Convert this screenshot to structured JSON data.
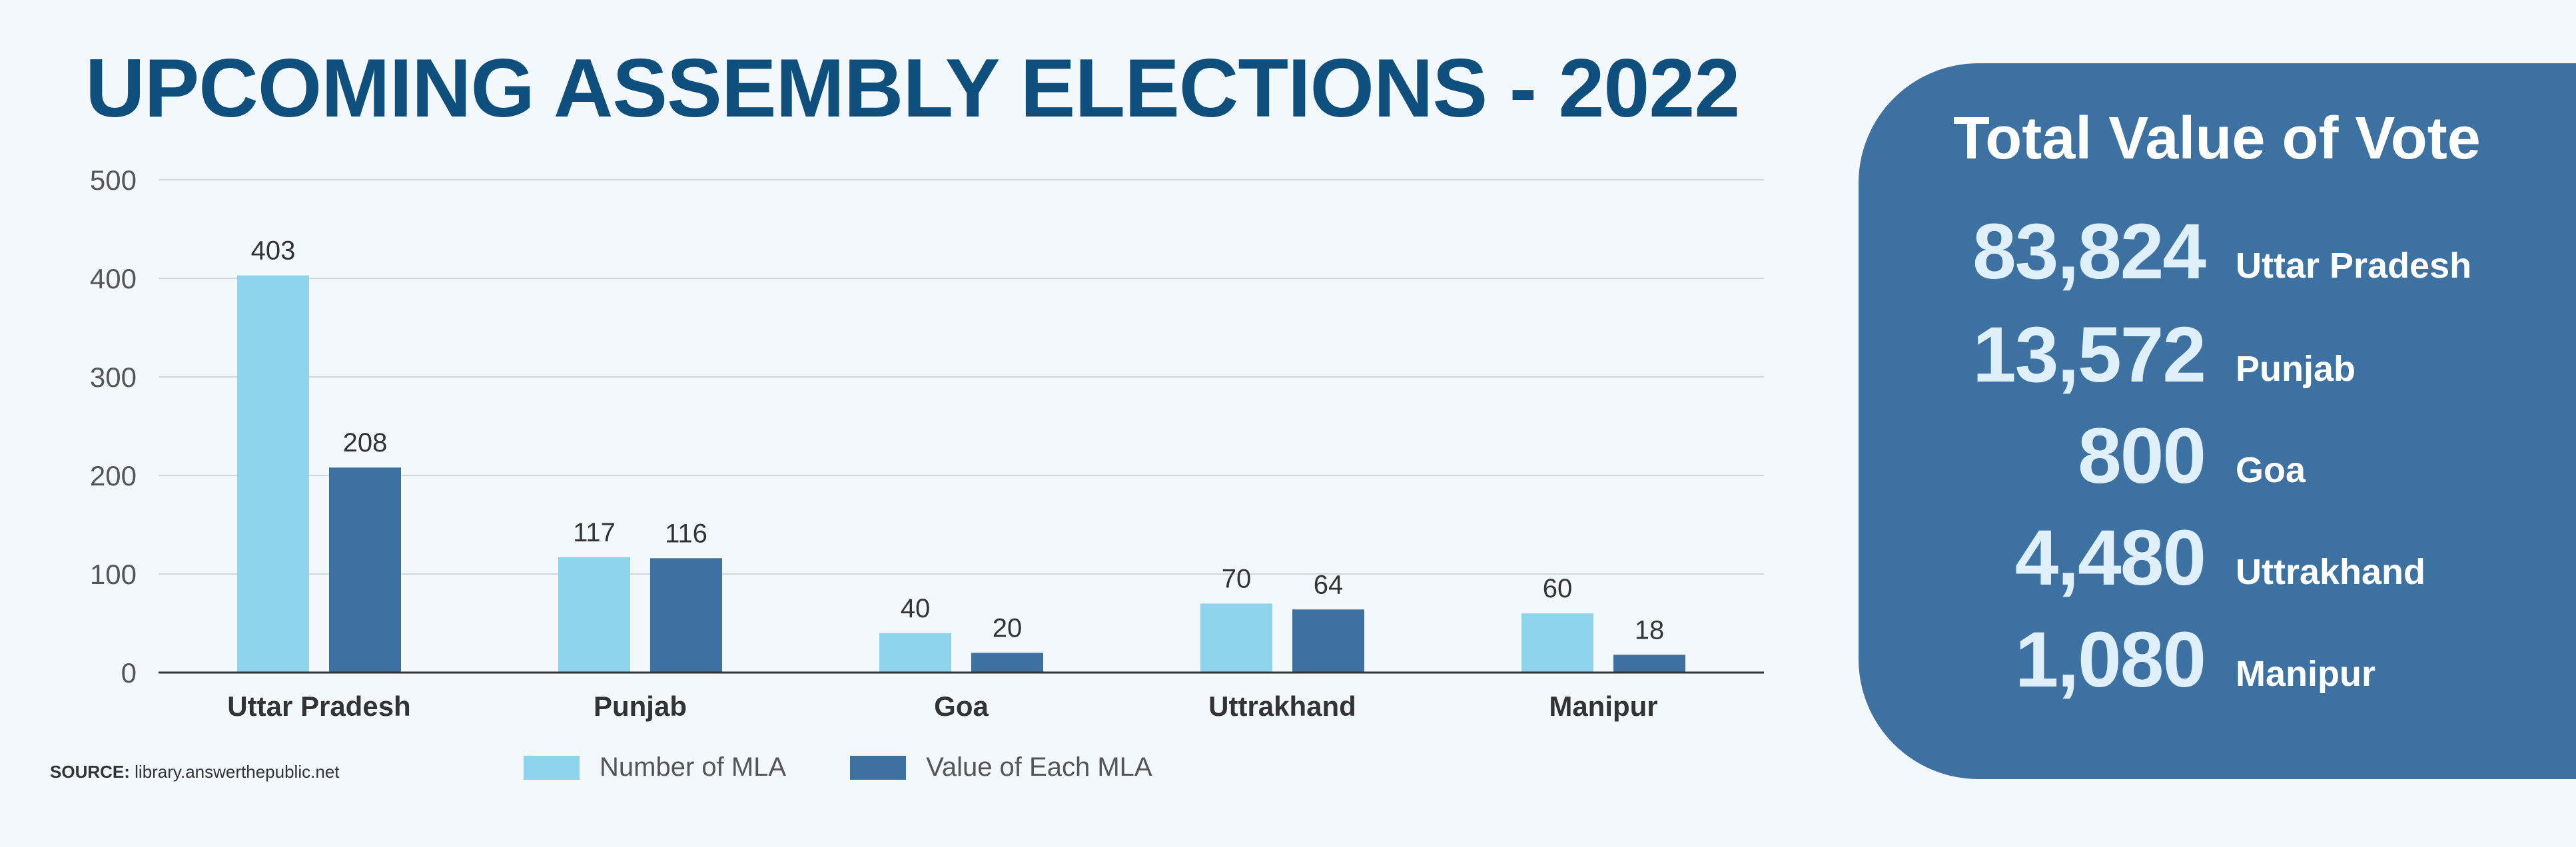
{
  "title": "UPCOMING ASSEMBLY ELECTIONS - 2022",
  "source": {
    "prefix": "SOURCE:",
    "text": "library.answerthepublic.net"
  },
  "colors": {
    "title": "#0f4f7e",
    "light_bar": "#8fd4ef",
    "dark_bar": "#3d71a1",
    "panel": "#3d71a1",
    "panel_number": "#dff0fb"
  },
  "chart_data": {
    "type": "bar",
    "title": "UPCOMING ASSEMBLY ELECTIONS - 2022",
    "categories": [
      "Uttar Pradesh",
      "Punjab",
      "Goa",
      "Uttrakhand",
      "Manipur"
    ],
    "series": [
      {
        "name": "Number of MLA",
        "values": [
          403,
          117,
          40,
          70,
          60
        ],
        "color": "#8fd4ef"
      },
      {
        "name": "Value of Each MLA",
        "values": [
          208,
          116,
          20,
          64,
          18
        ],
        "color": "#3d71a1"
      }
    ],
    "yticks": [
      0,
      100,
      200,
      300,
      400,
      500
    ],
    "ylim": [
      0,
      500
    ],
    "xlabel": "",
    "ylabel": "",
    "grid": true,
    "legend": "bottom"
  },
  "panel": {
    "title": "Total Value of Vote",
    "rows": [
      {
        "value": "83,824",
        "state": "Uttar Pradesh"
      },
      {
        "value": "13,572",
        "state": "Punjab"
      },
      {
        "value": "800",
        "state": "Goa"
      },
      {
        "value": "4,480",
        "state": "Uttrakhand"
      },
      {
        "value": "1,080",
        "state": "Manipur"
      }
    ]
  }
}
